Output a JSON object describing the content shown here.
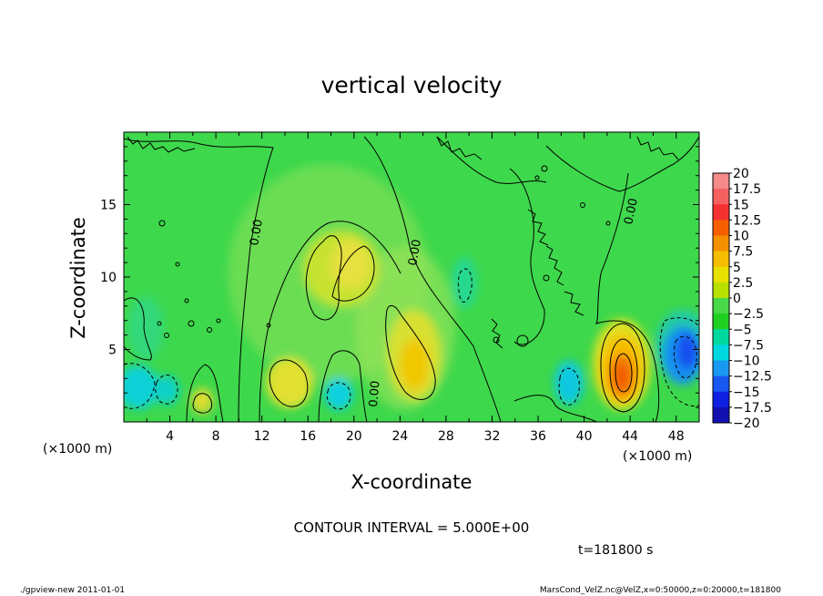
{
  "chart_data": {
    "type": "heatmap",
    "title": "vertical velocity",
    "xlabel": "X-coordinate",
    "ylabel": "Z-coordinate",
    "x_unit_label": "(×1000 m)",
    "y_unit_label": "(×1000 m)",
    "xlim": [
      0,
      50
    ],
    "ylim": [
      0,
      20
    ],
    "x_ticks": [
      4,
      8,
      12,
      16,
      20,
      24,
      28,
      32,
      36,
      40,
      44,
      48
    ],
    "y_ticks": [
      5,
      10,
      15
    ],
    "contour_interval_text": "CONTOUR INTERVAL = 5.000E+00",
    "contour_labels": [
      "0.00",
      "0.00",
      "0.00",
      "0.00"
    ],
    "time_text": "t=181800 s",
    "colorbar": {
      "levels": [
        "20",
        "17.5",
        "15",
        "12.5",
        "10",
        "7.5",
        "5",
        "2.5",
        "0",
        "−2.5",
        "−5",
        "−7.5",
        "−10",
        "−12.5",
        "−15",
        "−17.5",
        "−20"
      ],
      "colors": [
        "#f48a8a",
        "#f56060",
        "#f53030",
        "#f55f00",
        "#f59000",
        "#f5be00",
        "#e8e000",
        "#b8e000",
        "#48d848",
        "#20d020",
        "#00d8a0",
        "#00d8e0",
        "#1898f0",
        "#1858f0",
        "#1020e0",
        "#1010b0",
        "#7010c8"
      ]
    },
    "features": [
      {
        "kind": "updraft",
        "x": 43.5,
        "z": 3.0,
        "max": 12.5
      },
      {
        "kind": "updraft",
        "x": 25.5,
        "z": 4.0,
        "max": 7.5
      },
      {
        "kind": "updraft",
        "x": 14.5,
        "z": 2.7,
        "max": 5
      },
      {
        "kind": "updraft",
        "x": 20.0,
        "z": 10.5,
        "max": 5
      },
      {
        "kind": "updraft",
        "x": 7.0,
        "z": 1.3,
        "max": 5
      },
      {
        "kind": "downdraft",
        "x": 49.0,
        "z": 4.5,
        "min": -12.5
      },
      {
        "kind": "downdraft",
        "x": 1.5,
        "z": 2.0,
        "min": -7.5
      },
      {
        "kind": "downdraft",
        "x": 19.0,
        "z": 2.0,
        "min": -5
      },
      {
        "kind": "downdraft",
        "x": 39.0,
        "z": 2.5,
        "min": -5
      },
      {
        "kind": "downdraft",
        "x": 30.0,
        "z": 9.5,
        "min": -2.5
      }
    ]
  },
  "footer": {
    "left": "./gpview-new  2011-01-01",
    "right": "MarsCond_VelZ.nc@VelZ,x=0:50000,z=0:20000,t=181800"
  }
}
